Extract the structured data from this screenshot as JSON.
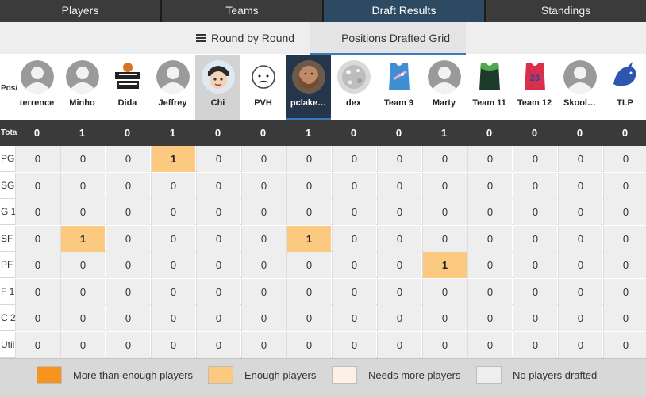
{
  "top_tabs": [
    {
      "label": "Players",
      "active": false
    },
    {
      "label": "Teams",
      "active": false
    },
    {
      "label": "Draft Results",
      "active": true
    },
    {
      "label": "Standings",
      "active": false
    }
  ],
  "sub_tabs": {
    "round_by_round": "Round by Round",
    "positions_grid": "Positions Drafted Grid"
  },
  "header_row_label": "Pos/Total",
  "total_row_label": "Total",
  "teams": [
    {
      "name": "terrence",
      "avatar": "default-user-icon"
    },
    {
      "name": "Minho",
      "avatar": "default-user-icon"
    },
    {
      "name": "Dida",
      "avatar": "i-love-this-game-logo"
    },
    {
      "name": "Jeffrey",
      "avatar": "default-user-icon"
    },
    {
      "name": "Chi",
      "avatar": "cartoon-face-avatar",
      "selected": "light"
    },
    {
      "name": "PVH",
      "avatar": "doodle-face-avatar"
    },
    {
      "name": "pclake…",
      "avatar": "photo-man-avatar",
      "selected": "dark"
    },
    {
      "name": "dex",
      "avatar": "glitter-ball-avatar"
    },
    {
      "name": "Team 9",
      "avatar": "blue-jersey-avatar"
    },
    {
      "name": "Marty",
      "avatar": "default-user-icon"
    },
    {
      "name": "Team 11",
      "avatar": "green-jersey-avatar"
    },
    {
      "name": "Team 12",
      "avatar": "red-jersey-23-avatar"
    },
    {
      "name": "Skool…",
      "avatar": "default-user-icon"
    },
    {
      "name": "TLP",
      "avatar": "blue-dragon-avatar"
    }
  ],
  "totals": [
    "0",
    "1",
    "0",
    "1",
    "0",
    "0",
    "1",
    "0",
    "0",
    "1",
    "0",
    "0",
    "0",
    "0"
  ],
  "positions": [
    {
      "label": "PG",
      "values": [
        "0",
        "0",
        "0",
        "1",
        "0",
        "0",
        "0",
        "0",
        "0",
        "0",
        "0",
        "0",
        "0",
        "0"
      ]
    },
    {
      "label": "SG",
      "values": [
        "0",
        "0",
        "0",
        "0",
        "0",
        "0",
        "0",
        "0",
        "0",
        "0",
        "0",
        "0",
        "0",
        "0"
      ]
    },
    {
      "label": "G 1",
      "values": [
        "0",
        "0",
        "0",
        "0",
        "0",
        "0",
        "0",
        "0",
        "0",
        "0",
        "0",
        "0",
        "0",
        "0"
      ]
    },
    {
      "label": "SF",
      "values": [
        "0",
        "1",
        "0",
        "0",
        "0",
        "0",
        "1",
        "0",
        "0",
        "0",
        "0",
        "0",
        "0",
        "0"
      ]
    },
    {
      "label": "PF",
      "values": [
        "0",
        "0",
        "0",
        "0",
        "0",
        "0",
        "0",
        "0",
        "0",
        "1",
        "0",
        "0",
        "0",
        "0"
      ]
    },
    {
      "label": "F 1",
      "values": [
        "0",
        "0",
        "0",
        "0",
        "0",
        "0",
        "0",
        "0",
        "0",
        "0",
        "0",
        "0",
        "0",
        "0"
      ]
    },
    {
      "label": "C 2",
      "values": [
        "0",
        "0",
        "0",
        "0",
        "0",
        "0",
        "0",
        "0",
        "0",
        "0",
        "0",
        "0",
        "0",
        "0"
      ]
    },
    {
      "label": "Util",
      "values": [
        "0",
        "0",
        "0",
        "0",
        "0",
        "0",
        "0",
        "0",
        "0",
        "0",
        "0",
        "0",
        "0",
        "0"
      ]
    }
  ],
  "legend": [
    {
      "label": "More than enough players",
      "color": "#f7931e"
    },
    {
      "label": "Enough players",
      "color": "#fcc981"
    },
    {
      "label": "Needs more players",
      "color": "#fdf0e4"
    },
    {
      "label": "No players drafted",
      "color": "#eeeeee"
    }
  ],
  "colors": {
    "enough_cell": "#fcc981",
    "zero_cell": "#eeeeee",
    "accent": "#3a7bbf",
    "active_tab": "#2e4a63"
  }
}
